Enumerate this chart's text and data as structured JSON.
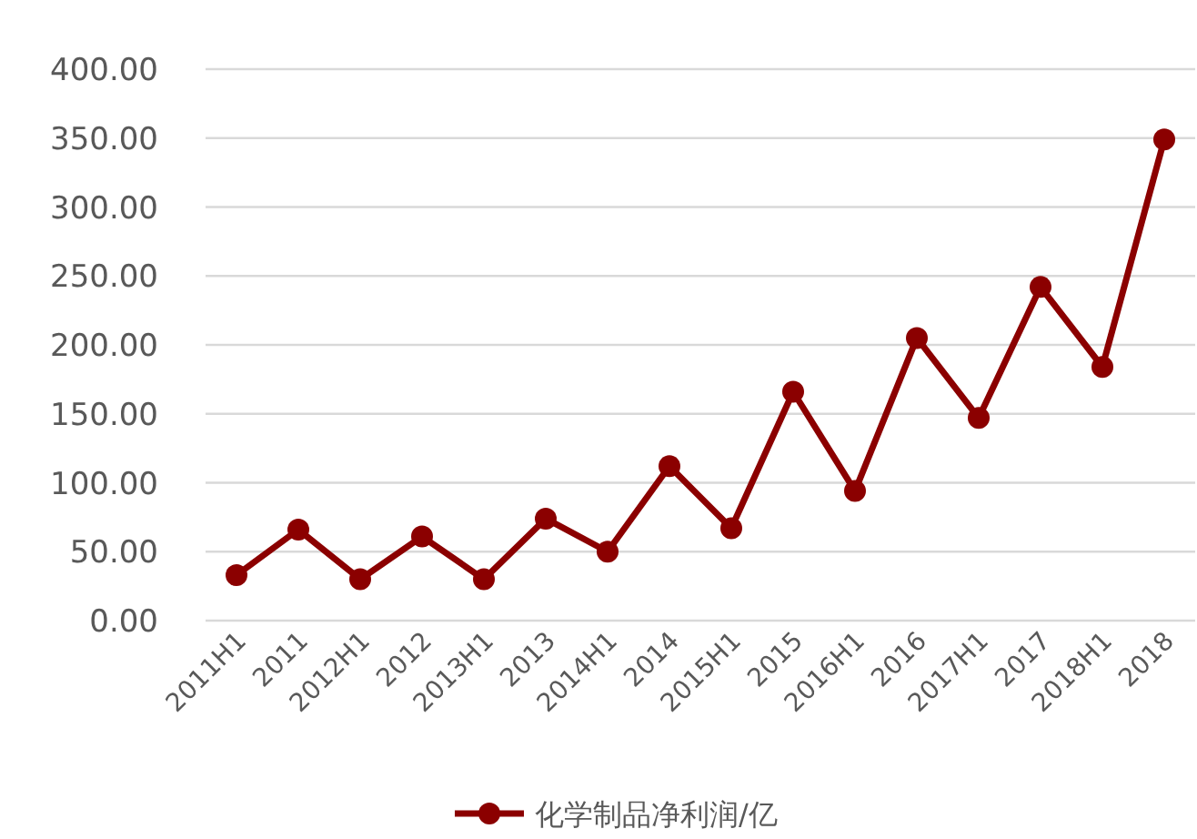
{
  "chart_data": {
    "type": "line",
    "categories": [
      "2011H1",
      "2011",
      "2012H1",
      "2012",
      "2013H1",
      "2013",
      "2014H1",
      "2014",
      "2015H1",
      "2015",
      "2016H1",
      "2016",
      "2017H1",
      "2017",
      "2018H1",
      "2018"
    ],
    "series": [
      {
        "name": "化学制品净利润/亿",
        "color": "#8b0000",
        "values": [
          33,
          66,
          30,
          61,
          30,
          74,
          50,
          112,
          67,
          166,
          94,
          205,
          147,
          242,
          184,
          349
        ]
      }
    ],
    "ylim": [
      0,
      400
    ],
    "yticks": [
      {
        "value": 0,
        "label": "0.00"
      },
      {
        "value": 50,
        "label": "50.00"
      },
      {
        "value": 100,
        "label": "100.00"
      },
      {
        "value": 150,
        "label": "150.00"
      },
      {
        "value": 200,
        "label": "200.00"
      },
      {
        "value": 250,
        "label": "250.00"
      },
      {
        "value": 300,
        "label": "300.00"
      },
      {
        "value": 350,
        "label": "350.00"
      },
      {
        "value": 400,
        "label": "400.00"
      }
    ],
    "grid": "y",
    "legend": "bottom",
    "marker": "circle",
    "line_style": "solid"
  }
}
